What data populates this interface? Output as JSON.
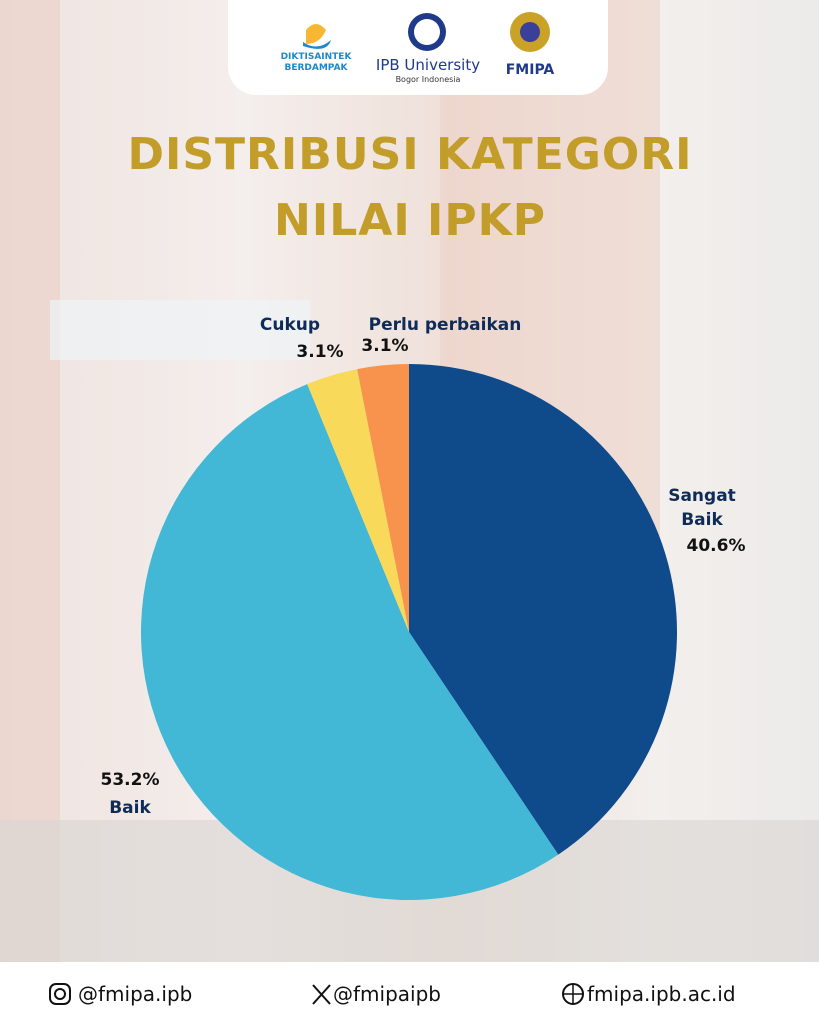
{
  "header": {
    "logos": [
      "DIKTISAINTEK BERDAMPAK",
      "IPB University",
      "Bogor Indonesia",
      "FMIPA"
    ]
  },
  "chart_data": {
    "type": "pie",
    "title": "DISTRIBUSI KATEGORI NILAI IPKP",
    "categories": [
      "Sangat Baik",
      "Baik",
      "Cukup",
      "Perlu perbaikan"
    ],
    "values": [
      40.6,
      53.2,
      3.1,
      3.1
    ],
    "value_labels": [
      "40.6%",
      "53.2%",
      "3.1%",
      "3.1%"
    ],
    "colors": [
      "#0f4a8a",
      "#42b7d6",
      "#f8d95a",
      "#f7934c"
    ]
  },
  "footer": {
    "instagram": "@fmipa.ipb",
    "x": "@fmipaipb",
    "website": "fmipa.ipb.ac.id"
  }
}
